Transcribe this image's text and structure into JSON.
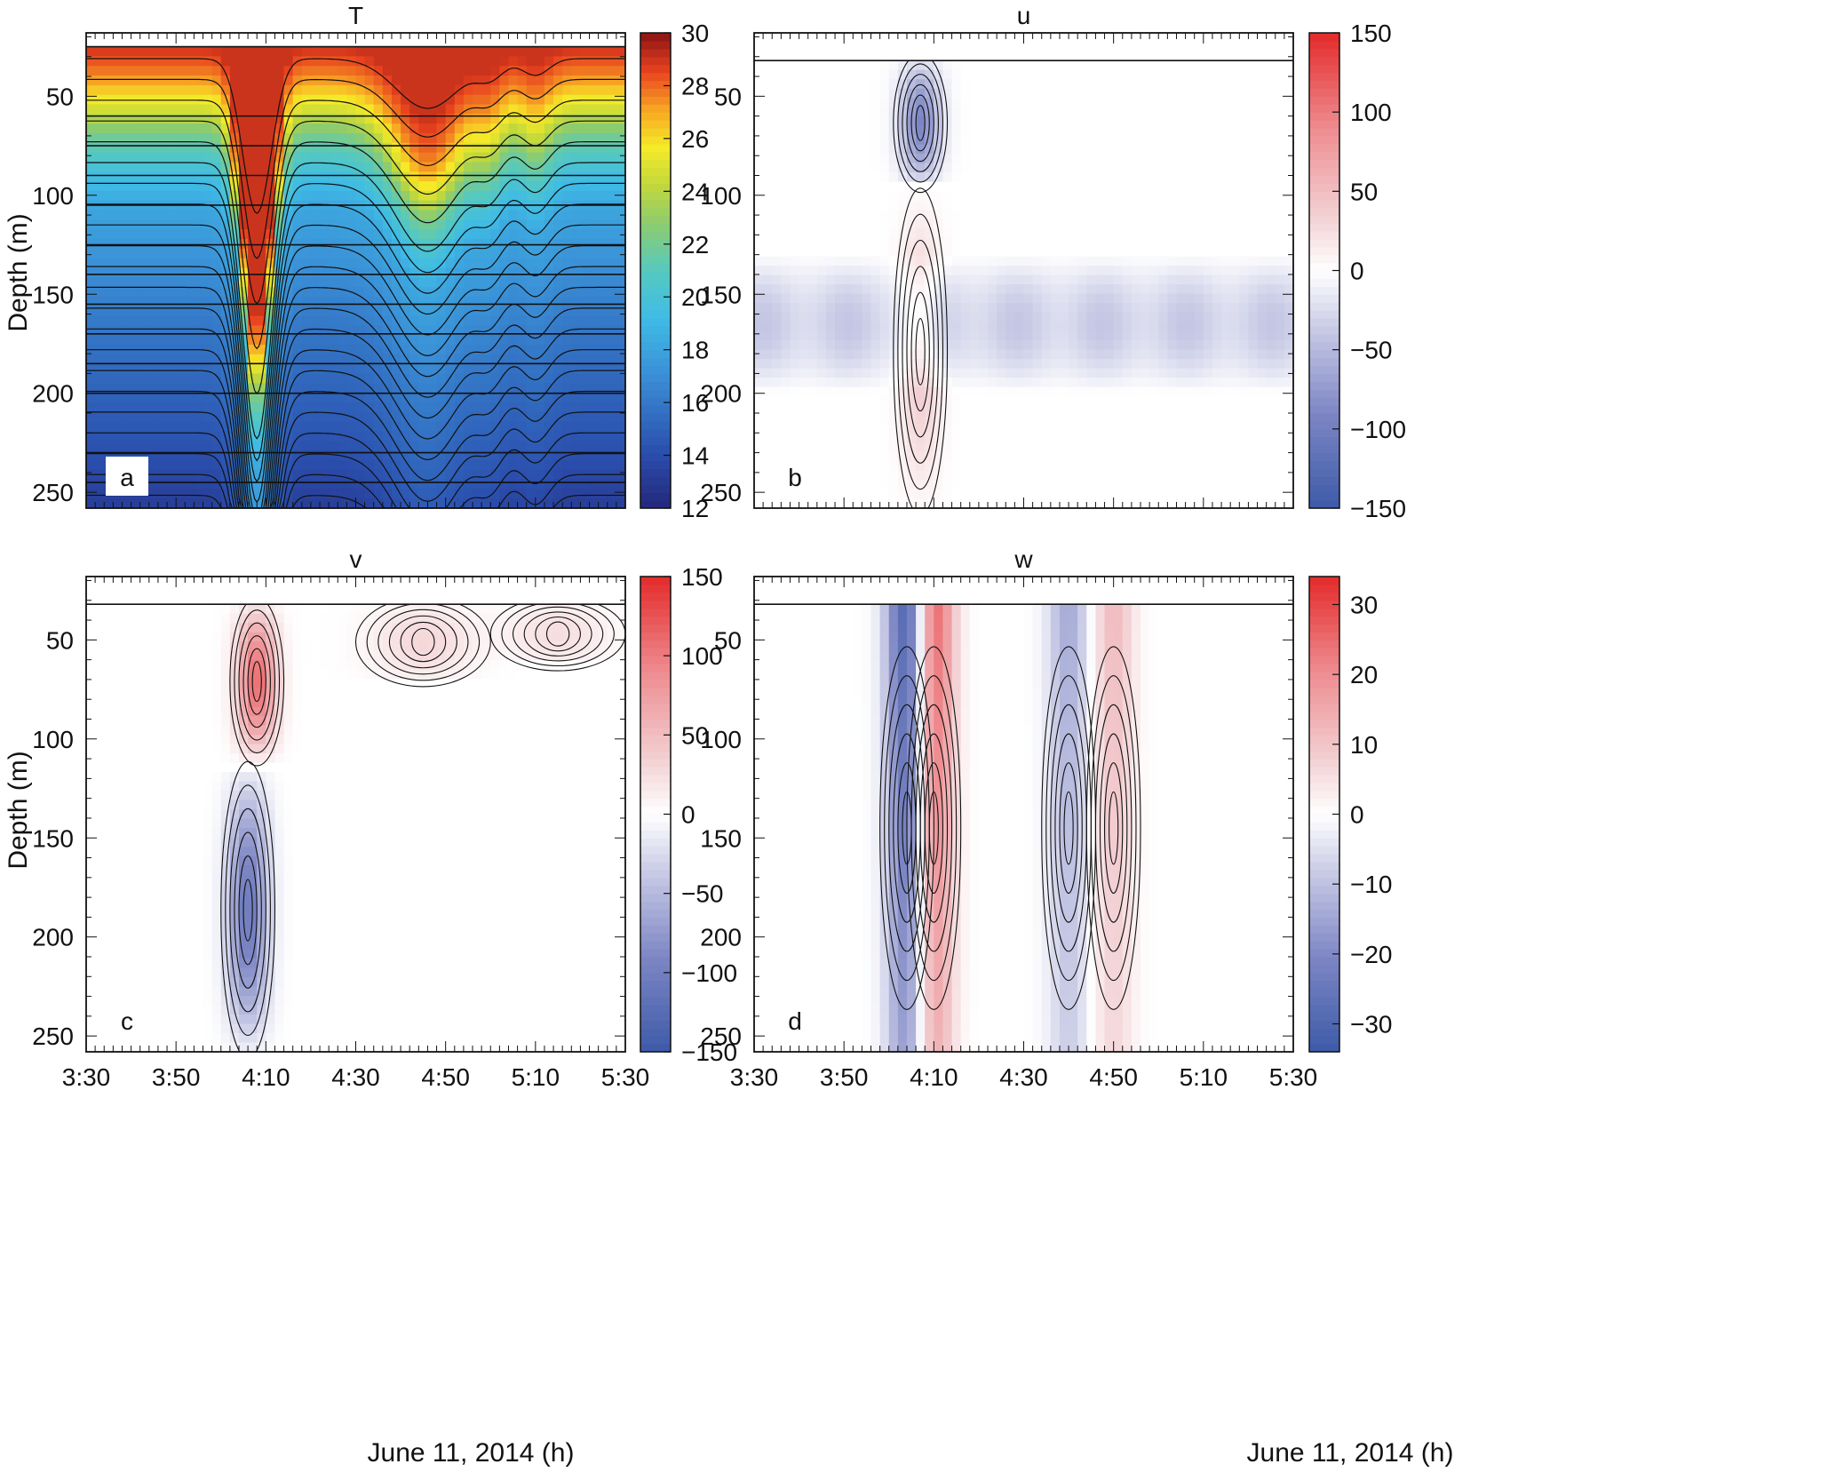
{
  "figure": {
    "shared_ylabel": "Depth (m)",
    "shared_xlabel": "June 11, 2014 (h)"
  },
  "chart_data": [
    {
      "type": "heatmap",
      "panel": "a",
      "title": "T",
      "xlabel": "June 11, 2014 (h)",
      "ylabel": "Depth (m)",
      "x_ticks": [
        "3:30",
        "3:50",
        "4:10",
        "4:30",
        "4:50",
        "5:10",
        "5:30"
      ],
      "xlim": [
        "3:30",
        "5:30"
      ],
      "y_ticks": [
        50,
        100,
        150,
        200,
        250
      ],
      "ylim": [
        258,
        18
      ],
      "colorbar": {
        "min": 12,
        "max": 30,
        "ticks": [
          12,
          14,
          16,
          18,
          20,
          22,
          24,
          26,
          28,
          30
        ],
        "colormap": "jet"
      },
      "surface_depth": 25,
      "features": [
        {
          "kind": "trough",
          "center": "4:08",
          "half_width_min": 3.2,
          "depth_amplitude_m": 140
        },
        {
          "kind": "trough",
          "center": "4:46",
          "half_width_min": 7,
          "depth_amplitude_m": 45
        },
        {
          "kind": "trough",
          "center": "5:00",
          "half_width_min": 3,
          "depth_amplitude_m": 15
        },
        {
          "kind": "trough",
          "center": "5:10",
          "half_width_min": 3,
          "depth_amplitude_m": 15
        }
      ],
      "profile": [
        {
          "depth": 25,
          "T": 29
        },
        {
          "depth": 40,
          "T": 27.5
        },
        {
          "depth": 55,
          "T": 25
        },
        {
          "depth": 70,
          "T": 22
        },
        {
          "depth": 90,
          "T": 19.5
        },
        {
          "depth": 105,
          "T": 18.2
        },
        {
          "depth": 130,
          "T": 17.3
        },
        {
          "depth": 160,
          "T": 16.2
        },
        {
          "depth": 195,
          "T": 15.2
        },
        {
          "depth": 230,
          "T": 14.2
        },
        {
          "depth": 258,
          "T": 13.2
        }
      ],
      "horizontal_reference_depths": [
        60,
        75,
        90,
        105,
        125,
        140,
        155,
        170,
        185,
        200,
        230,
        245
      ]
    },
    {
      "type": "heatmap",
      "panel": "b",
      "title": "u",
      "xlabel": "June 11, 2014 (h)",
      "ylabel": "Depth (m)",
      "x_ticks": [
        "3:30",
        "3:50",
        "4:10",
        "4:30",
        "4:50",
        "5:10",
        "5:30"
      ],
      "xlim": [
        "3:30",
        "5:30"
      ],
      "ylim": [
        258,
        18
      ],
      "colorbar": {
        "min": -150,
        "max": 150,
        "ticks": [
          -150,
          -100,
          -50,
          0,
          50,
          100,
          150
        ],
        "colormap": "blue-white-red"
      },
      "top_data_depth": 32,
      "features": [
        {
          "kind": "negative core",
          "time": "4:07",
          "depth_top": 32,
          "depth_bottom": 95,
          "peak": -90
        },
        {
          "kind": "positive column",
          "time": "4:07",
          "depth_top": 100,
          "depth_bottom": 258,
          "peak": 40
        },
        {
          "kind": "negative band",
          "depth_top": 130,
          "depth_bottom": 200,
          "peak": -40
        }
      ]
    },
    {
      "type": "heatmap",
      "panel": "c",
      "title": "v",
      "xlabel": "June 11, 2014 (h)",
      "ylabel": "Depth (m)",
      "x_ticks": [
        "3:30",
        "3:50",
        "4:10",
        "4:30",
        "4:50",
        "5:10",
        "5:30"
      ],
      "xlim": [
        "3:30",
        "5:30"
      ],
      "ylim": [
        258,
        18
      ],
      "colorbar": {
        "min": -150,
        "max": 150,
        "ticks": [
          -150,
          -100,
          -50,
          0,
          50,
          100,
          150
        ],
        "colormap": "blue-white-red"
      },
      "top_data_depth": 32,
      "features": [
        {
          "kind": "positive core",
          "time": "4:08",
          "depth_top": 32,
          "depth_bottom": 110,
          "peak": 110
        },
        {
          "kind": "negative column",
          "time": "4:06",
          "depth_top": 115,
          "depth_bottom": 258,
          "peak": -105
        },
        {
          "kind": "positive patch",
          "time": "4:45",
          "depth_top": 32,
          "depth_bottom": 70,
          "peak": 30
        },
        {
          "kind": "positive patch",
          "time": "5:15",
          "depth_top": 32,
          "depth_bottom": 62,
          "peak": 25
        }
      ]
    },
    {
      "type": "heatmap",
      "panel": "d",
      "title": "w",
      "xlabel": "June 11, 2014 (h)",
      "ylabel": "Depth (m)",
      "x_ticks": [
        "3:30",
        "3:50",
        "4:10",
        "4:30",
        "4:50",
        "5:10",
        "5:30"
      ],
      "xlim": [
        "3:30",
        "5:30"
      ],
      "ylim": [
        258,
        18
      ],
      "colorbar": {
        "min": -34,
        "max": 34,
        "ticks": [
          -30,
          -20,
          -10,
          0,
          10,
          20,
          30
        ],
        "colormap": "blue-white-red"
      },
      "top_data_depth": 32,
      "features": [
        {
          "kind": "negative column",
          "time": "4:04",
          "peak": -32
        },
        {
          "kind": "positive column",
          "time": "4:10",
          "peak": 28
        },
        {
          "kind": "negative column",
          "time": "4:40",
          "peak": -14
        },
        {
          "kind": "positive column",
          "time": "4:50",
          "peak": 12
        }
      ]
    }
  ]
}
